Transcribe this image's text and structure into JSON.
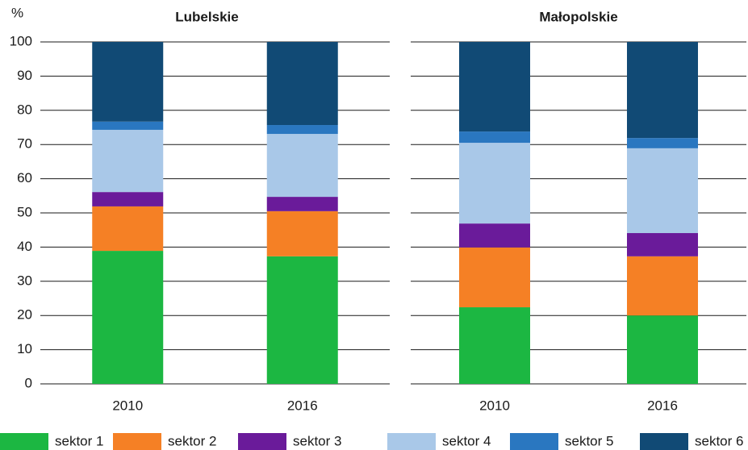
{
  "chart_data": [
    {
      "type": "bar",
      "stacked": true,
      "title": "Lubelskie",
      "y_label": "%",
      "ylim": [
        0,
        100
      ],
      "yticks": [
        0,
        10,
        20,
        30,
        40,
        50,
        60,
        70,
        80,
        90,
        100
      ],
      "grid": true,
      "categories": [
        "2010",
        "2016"
      ],
      "series": [
        {
          "name": "sektor 1",
          "color": "#1cb742",
          "values": [
            38.9,
            37.3
          ]
        },
        {
          "name": "sektor 2",
          "color": "#f58025",
          "values": [
            13.0,
            13.2
          ]
        },
        {
          "name": "sektor 3",
          "color": "#6a1b9a",
          "values": [
            4.2,
            4.2
          ]
        },
        {
          "name": "sektor 4",
          "color": "#a9c8e8",
          "values": [
            18.2,
            18.4
          ]
        },
        {
          "name": "sektor 5",
          "color": "#2a77c0",
          "values": [
            2.4,
            2.6
          ]
        },
        {
          "name": "sektor 6",
          "color": "#114a75",
          "values": [
            23.3,
            24.3
          ]
        }
      ]
    },
    {
      "type": "bar",
      "stacked": true,
      "title": "Małopolskie",
      "categories": [
        "2010",
        "2016"
      ],
      "series": [
        {
          "values": [
            22.4,
            20.0
          ]
        },
        {
          "values": [
            17.5,
            17.3
          ]
        },
        {
          "values": [
            7.0,
            6.8
          ]
        },
        {
          "values": [
            23.6,
            24.8
          ]
        },
        {
          "values": [
            3.3,
            3.0
          ]
        },
        {
          "values": [
            26.2,
            28.1
          ]
        }
      ]
    }
  ]
}
